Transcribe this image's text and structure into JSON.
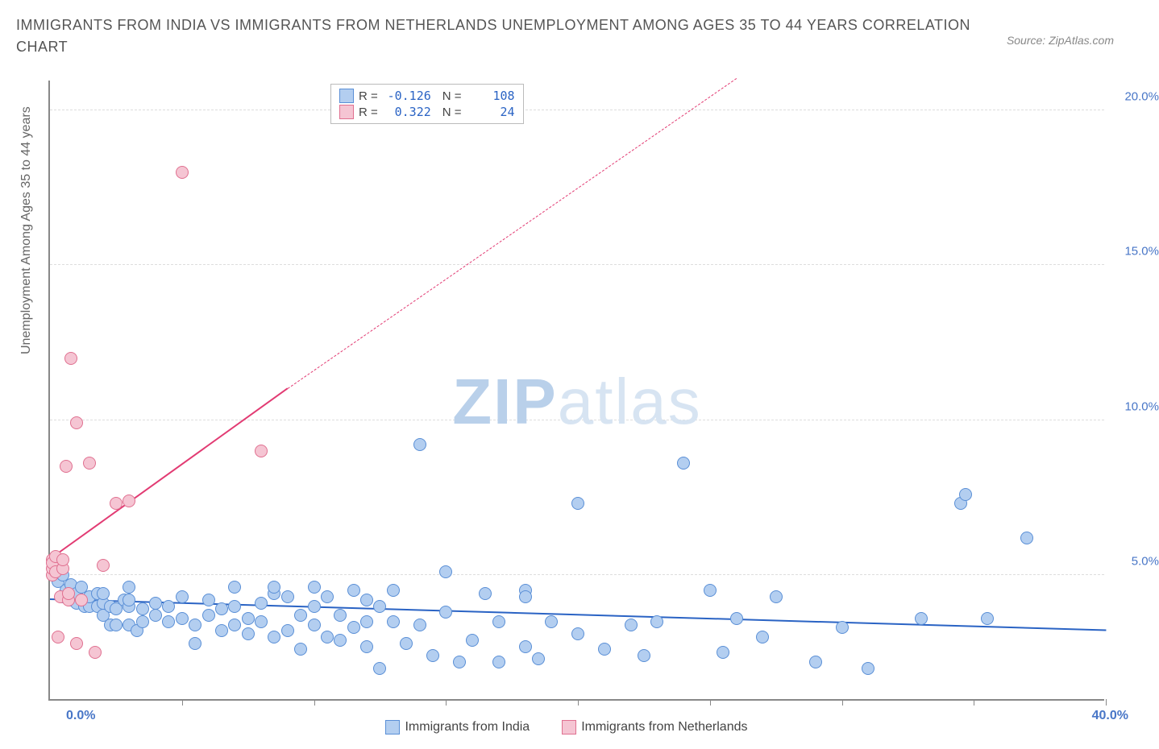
{
  "title": "IMMIGRANTS FROM INDIA VS IMMIGRANTS FROM NETHERLANDS UNEMPLOYMENT AMONG AGES 35 TO 44 YEARS CORRELATION CHART",
  "source": "Source: ZipAtlas.com",
  "watermark_zip": "ZIP",
  "watermark_atlas": "atlas",
  "watermark_zip_color": "#b9d0ea",
  "watermark_atlas_color": "#d7e4f2",
  "chart": {
    "type": "scatter",
    "ylabel": "Unemployment Among Ages 35 to 44 years",
    "ylabel_color": "#666666",
    "xaxis": {
      "min": 0,
      "max": 40,
      "min_label": "0.0%",
      "max_label": "40.0%",
      "tick_positions": [
        5,
        10,
        15,
        20,
        25,
        30,
        35,
        40
      ],
      "label_color": "#4876c7"
    },
    "yaxis": {
      "min": 1,
      "max": 21,
      "ticks": [
        5,
        10,
        15,
        20
      ],
      "tick_labels": [
        "5.0%",
        "10.0%",
        "15.0%",
        "20.0%"
      ],
      "label_color": "#4876c7"
    },
    "grid_color": "#dddddd",
    "axis_color": "#888888",
    "background_color": "#ffffff",
    "point_radius": 8
  },
  "series": {
    "india": {
      "label": "Immigrants from India",
      "fill": "#b3cef0",
      "stroke": "#5a8fd6",
      "trend_color": "#2a63c4",
      "r": "-0.126",
      "n": "108",
      "trend": {
        "x1": 0,
        "y1": 4.2,
        "x2": 40,
        "y2": 3.2
      },
      "points": [
        [
          0.3,
          4.8
        ],
        [
          0.3,
          5.2
        ],
        [
          0.5,
          4.3
        ],
        [
          0.5,
          5.0
        ],
        [
          0.6,
          4.5
        ],
        [
          0.8,
          4.2
        ],
        [
          0.8,
          4.7
        ],
        [
          1.0,
          4.1
        ],
        [
          1.0,
          4.4
        ],
        [
          1.2,
          4.6
        ],
        [
          1.3,
          4.0
        ],
        [
          1.5,
          4.0
        ],
        [
          1.5,
          4.3
        ],
        [
          1.8,
          4.0
        ],
        [
          1.8,
          4.4
        ],
        [
          2.0,
          3.7
        ],
        [
          2.0,
          4.1
        ],
        [
          2.0,
          4.4
        ],
        [
          2.3,
          3.4
        ],
        [
          2.3,
          4.0
        ],
        [
          2.5,
          3.9
        ],
        [
          2.5,
          3.4
        ],
        [
          2.8,
          4.2
        ],
        [
          3.0,
          3.4
        ],
        [
          3.0,
          4.0
        ],
        [
          3.0,
          4.2
        ],
        [
          3.0,
          4.6
        ],
        [
          3.3,
          3.2
        ],
        [
          3.5,
          3.9
        ],
        [
          3.5,
          3.5
        ],
        [
          4.0,
          3.7
        ],
        [
          4.0,
          4.1
        ],
        [
          4.5,
          3.5
        ],
        [
          4.5,
          4.0
        ],
        [
          5.0,
          3.6
        ],
        [
          5.0,
          4.3
        ],
        [
          5.5,
          3.4
        ],
        [
          5.5,
          2.8
        ],
        [
          6.0,
          3.7
        ],
        [
          6.0,
          4.2
        ],
        [
          6.5,
          3.2
        ],
        [
          6.5,
          3.9
        ],
        [
          7.0,
          3.4
        ],
        [
          7.0,
          4.0
        ],
        [
          7.0,
          4.6
        ],
        [
          7.5,
          3.1
        ],
        [
          7.5,
          3.6
        ],
        [
          8.0,
          3.5
        ],
        [
          8.0,
          4.1
        ],
        [
          8.5,
          3.0
        ],
        [
          8.5,
          4.4
        ],
        [
          8.5,
          4.6
        ],
        [
          9.0,
          3.2
        ],
        [
          9.0,
          4.3
        ],
        [
          9.5,
          2.6
        ],
        [
          9.5,
          3.7
        ],
        [
          10.0,
          3.4
        ],
        [
          10.0,
          4.0
        ],
        [
          10.0,
          4.6
        ],
        [
          10.5,
          3.0
        ],
        [
          10.5,
          4.3
        ],
        [
          11.0,
          2.9
        ],
        [
          11.0,
          3.7
        ],
        [
          11.5,
          3.3
        ],
        [
          11.5,
          4.5
        ],
        [
          12.0,
          2.7
        ],
        [
          12.0,
          3.5
        ],
        [
          12.0,
          4.2
        ],
        [
          12.5,
          2.0
        ],
        [
          12.5,
          4.0
        ],
        [
          13.0,
          3.5
        ],
        [
          13.0,
          4.5
        ],
        [
          13.5,
          2.8
        ],
        [
          14.0,
          3.4
        ],
        [
          14.0,
          9.2
        ],
        [
          14.5,
          2.4
        ],
        [
          15.0,
          3.8
        ],
        [
          15.0,
          5.1
        ],
        [
          15.5,
          2.2
        ],
        [
          16.0,
          2.9
        ],
        [
          16.5,
          4.4
        ],
        [
          17.0,
          2.2
        ],
        [
          17.0,
          3.5
        ],
        [
          18.0,
          2.7
        ],
        [
          18.0,
          4.5
        ],
        [
          18.0,
          4.3
        ],
        [
          18.5,
          2.3
        ],
        [
          19.0,
          3.5
        ],
        [
          20.0,
          3.1
        ],
        [
          20.0,
          7.3
        ],
        [
          21.0,
          2.6
        ],
        [
          22.0,
          3.4
        ],
        [
          22.5,
          2.4
        ],
        [
          23.0,
          3.5
        ],
        [
          24.0,
          8.6
        ],
        [
          25.0,
          4.5
        ],
        [
          25.5,
          2.5
        ],
        [
          26.0,
          3.6
        ],
        [
          27.0,
          3.0
        ],
        [
          27.5,
          4.3
        ],
        [
          29.0,
          2.2
        ],
        [
          30.0,
          3.3
        ],
        [
          31.0,
          2.0
        ],
        [
          33.0,
          3.6
        ],
        [
          34.5,
          7.3
        ],
        [
          34.7,
          7.6
        ],
        [
          35.5,
          3.6
        ],
        [
          37.0,
          6.2
        ]
      ]
    },
    "netherlands": {
      "label": "Immigrants from Netherlands",
      "fill": "#f5c5d3",
      "stroke": "#e07090",
      "trend_color": "#e23b73",
      "r": "0.322",
      "n": "24",
      "trend_solid": {
        "x1": 0,
        "y1": 5.5,
        "x2": 9,
        "y2": 11.0
      },
      "trend_dash": {
        "x1": 9,
        "y1": 11.0,
        "x2": 26,
        "y2": 21.0
      },
      "points": [
        [
          0.1,
          5.0
        ],
        [
          0.1,
          5.5
        ],
        [
          0.1,
          5.2
        ],
        [
          0.1,
          5.4
        ],
        [
          0.2,
          5.1
        ],
        [
          0.2,
          5.6
        ],
        [
          0.3,
          3.0
        ],
        [
          0.4,
          4.3
        ],
        [
          0.5,
          5.2
        ],
        [
          0.5,
          5.5
        ],
        [
          0.6,
          8.5
        ],
        [
          0.7,
          4.2
        ],
        [
          0.7,
          4.4
        ],
        [
          0.8,
          12.0
        ],
        [
          1.0,
          2.8
        ],
        [
          1.0,
          9.9
        ],
        [
          1.2,
          4.2
        ],
        [
          1.5,
          8.6
        ],
        [
          1.7,
          2.5
        ],
        [
          2.0,
          5.3
        ],
        [
          2.5,
          7.3
        ],
        [
          3.0,
          7.4
        ],
        [
          5.0,
          18.0
        ],
        [
          8.0,
          9.0
        ]
      ]
    }
  },
  "corr_box": {
    "r_label": "R =",
    "n_label": "N =",
    "value_color": "#2a63c4"
  }
}
